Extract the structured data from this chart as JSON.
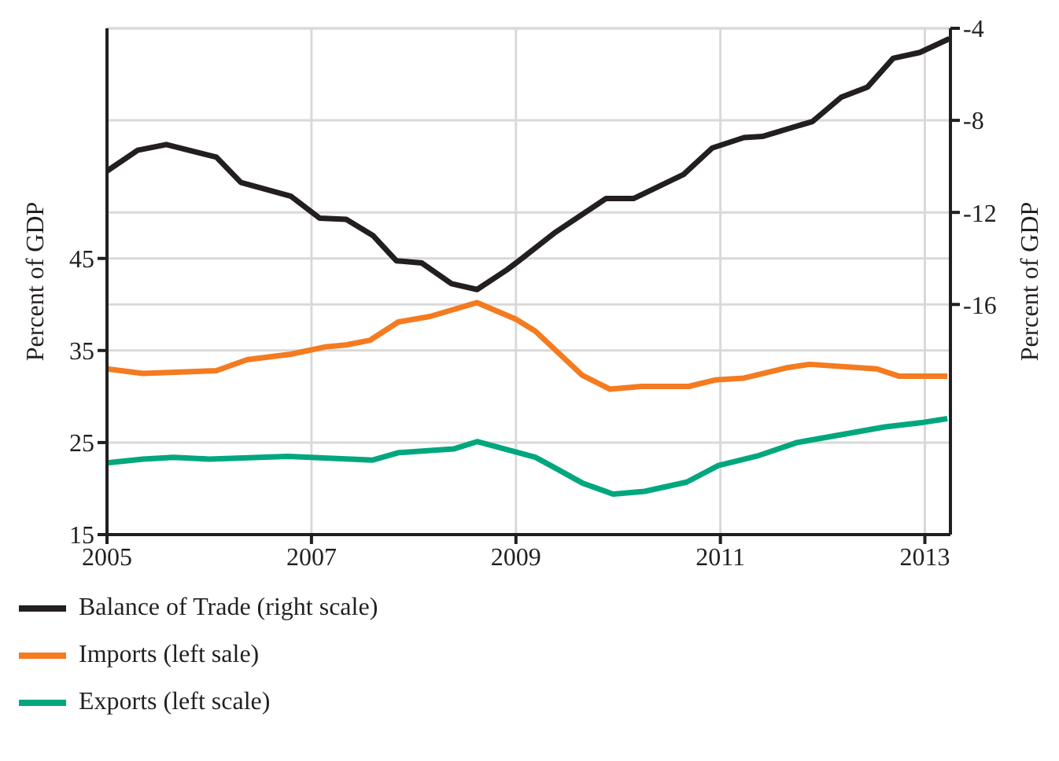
{
  "chart_data": {
    "type": "line",
    "xlim": [
      2005,
      2013.25
    ],
    "xticks": [
      2005,
      2007,
      2009,
      2011,
      2013
    ],
    "ylim": [
      15,
      70
    ],
    "yticks": [
      15,
      25,
      35,
      45
    ],
    "y2lim": [
      -26,
      -4
    ],
    "y2ticks": [
      -4,
      -8,
      -12,
      -16
    ],
    "ylabel": "Percent of GDP",
    "y2label": "Percent of GDP",
    "grid": true,
    "legend": "bottom",
    "line_style": "solid",
    "series": [
      {
        "name": "Balance of Trade (right scale)",
        "color": "#231f20",
        "axis": "y2",
        "x": [
          2005.0,
          2005.3,
          2005.58,
          2006.07,
          2006.31,
          2006.8,
          2007.08,
          2007.34,
          2007.6,
          2007.83,
          2008.08,
          2008.37,
          2008.62,
          2008.91,
          2009.03,
          2009.39,
          2009.88,
          2010.15,
          2010.64,
          2010.92,
          2011.23,
          2011.41,
          2011.9,
          2012.18,
          2012.44,
          2012.69,
          2012.95,
          2013.24
        ],
        "values": [
          -10.2,
          -9.3,
          -9.05,
          -9.6,
          -10.7,
          -11.3,
          -12.25,
          -12.3,
          -13.0,
          -14.1,
          -14.2,
          -15.1,
          -15.35,
          -14.5,
          -14.1,
          -12.85,
          -11.4,
          -11.4,
          -10.35,
          -9.2,
          -8.75,
          -8.7,
          -8.05,
          -7.0,
          -6.55,
          -5.3,
          -5.05,
          -4.45
        ]
      },
      {
        "name": "Imports (left sale)",
        "color": "#f47b20",
        "x": [
          2005.0,
          2005.35,
          2006.07,
          2006.37,
          2006.8,
          2007.14,
          2007.34,
          2007.57,
          2007.85,
          2008.16,
          2008.62,
          2009.0,
          2009.19,
          2009.65,
          2009.92,
          2010.23,
          2010.69,
          2010.95,
          2011.23,
          2011.64,
          2011.87,
          2012.53,
          2012.75,
          2013.22
        ],
        "values": [
          33.0,
          32.5,
          32.8,
          34.0,
          34.6,
          35.4,
          35.6,
          36.1,
          38.1,
          38.7,
          40.2,
          38.4,
          37.1,
          32.3,
          30.8,
          31.1,
          31.1,
          31.8,
          32.0,
          33.1,
          33.5,
          33.0,
          32.2,
          32.2
        ]
      },
      {
        "name": "Exports (left scale)",
        "color": "#00a77e",
        "x": [
          2005.0,
          2005.35,
          2005.65,
          2006.0,
          2006.77,
          2007.6,
          2007.85,
          2008.39,
          2008.62,
          2009.19,
          2009.34,
          2009.65,
          2009.95,
          2010.26,
          2010.67,
          2010.98,
          2011.38,
          2011.75,
          2012.61,
          2012.99,
          2013.22
        ],
        "values": [
          22.8,
          23.2,
          23.4,
          23.2,
          23.5,
          23.1,
          23.9,
          24.3,
          25.1,
          23.4,
          22.5,
          20.6,
          19.4,
          19.7,
          20.7,
          22.5,
          23.6,
          25.0,
          26.7,
          27.2,
          27.6
        ]
      }
    ]
  }
}
